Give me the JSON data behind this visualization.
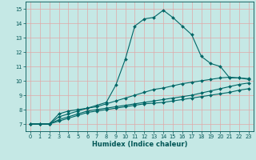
{
  "xlabel": "Humidex (Indice chaleur)",
  "xlim": [
    -0.5,
    23.5
  ],
  "ylim": [
    6.5,
    15.5
  ],
  "xticks": [
    0,
    1,
    2,
    3,
    4,
    5,
    6,
    7,
    8,
    9,
    10,
    11,
    12,
    13,
    14,
    15,
    16,
    17,
    18,
    19,
    20,
    21,
    22,
    23
  ],
  "yticks": [
    7,
    8,
    9,
    10,
    11,
    12,
    13,
    14,
    15
  ],
  "bg_color": "#c5e8e5",
  "grid_color": "#e0a8a8",
  "line_color": "#006666",
  "line1_x": [
    0,
    1,
    2,
    3,
    4,
    5,
    6,
    7,
    8,
    9,
    10,
    11,
    12,
    13,
    14,
    15,
    16,
    17,
    18,
    19,
    20,
    21,
    22,
    23
  ],
  "line1_y": [
    7.0,
    7.0,
    7.0,
    7.7,
    7.9,
    8.0,
    8.1,
    8.3,
    8.5,
    9.7,
    11.5,
    13.8,
    14.3,
    14.4,
    14.9,
    14.4,
    13.8,
    13.2,
    11.7,
    11.2,
    11.0,
    10.2,
    10.2,
    10.1
  ],
  "line2_x": [
    0,
    1,
    2,
    3,
    4,
    5,
    6,
    7,
    8,
    9,
    10,
    11,
    12,
    13,
    14,
    15,
    16,
    17,
    18,
    19,
    20,
    21,
    22,
    23
  ],
  "line2_y": [
    7.0,
    7.0,
    7.0,
    7.5,
    7.7,
    7.9,
    8.1,
    8.2,
    8.4,
    8.6,
    8.8,
    9.0,
    9.2,
    9.4,
    9.5,
    9.65,
    9.8,
    9.9,
    10.0,
    10.1,
    10.2,
    10.25,
    10.2,
    10.15
  ],
  "line3_x": [
    0,
    1,
    2,
    3,
    4,
    5,
    6,
    7,
    8,
    9,
    10,
    11,
    12,
    13,
    14,
    15,
    16,
    17,
    18,
    19,
    20,
    21,
    22,
    23
  ],
  "line3_y": [
    7.0,
    7.0,
    7.0,
    7.3,
    7.5,
    7.7,
    7.9,
    8.0,
    8.1,
    8.2,
    8.3,
    8.4,
    8.5,
    8.6,
    8.7,
    8.8,
    8.9,
    9.0,
    9.15,
    9.3,
    9.45,
    9.6,
    9.75,
    9.85
  ],
  "line4_x": [
    0,
    1,
    2,
    3,
    4,
    5,
    6,
    7,
    8,
    9,
    10,
    11,
    12,
    13,
    14,
    15,
    16,
    17,
    18,
    19,
    20,
    21,
    22,
    23
  ],
  "line4_y": [
    7.0,
    7.0,
    7.0,
    7.2,
    7.4,
    7.6,
    7.8,
    7.9,
    8.0,
    8.1,
    8.2,
    8.3,
    8.4,
    8.45,
    8.5,
    8.6,
    8.7,
    8.8,
    8.9,
    9.0,
    9.1,
    9.2,
    9.35,
    9.45
  ],
  "marker": "D",
  "markersize": 2.0,
  "linewidth": 0.8,
  "tick_fontsize": 4.8,
  "xlabel_fontsize": 6.0,
  "title_color": "#005555"
}
